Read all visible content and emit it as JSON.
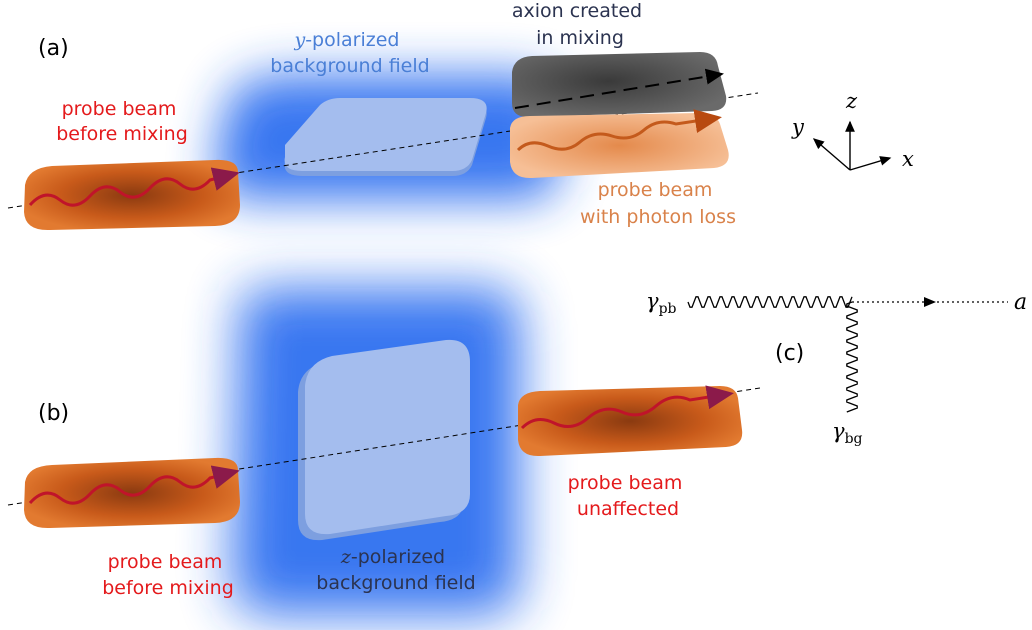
{
  "colors": {
    "red_label": "#e41a1c",
    "orange_label": "#d9824a",
    "blue_label": "#4a7fd6",
    "dark_label": "#2b3350",
    "field_glow": "#2f6ff0",
    "field_plate": "#9db8ec",
    "beam_plate": "#d4621c",
    "beam_plate_light": "#f3a46c",
    "axion_plate": "#4e4e4e",
    "wave": "#c0142a"
  },
  "panel_a": {
    "tag": "(a)",
    "probe_before": [
      "probe beam",
      "before mixing"
    ],
    "field_var": "y",
    "field_line1": "-polarized",
    "field_line2": "background field",
    "axion": [
      "axion created",
      "in mixing"
    ],
    "probe_loss": [
      "probe beam",
      "with photon loss"
    ]
  },
  "axes": {
    "y": "y",
    "z": "z",
    "x": "x"
  },
  "panel_b": {
    "tag": "(b)",
    "probe_before": [
      "probe beam",
      "before mixing"
    ],
    "field_var": "z",
    "field_line1": "-polarized",
    "field_line2": "background field",
    "probe_after": [
      "probe beam",
      "unaffected"
    ]
  },
  "panel_c": {
    "tag": "(c)",
    "gamma": "γ",
    "pb_sub": "pb",
    "bg_sub": "bg",
    "a": "a"
  }
}
